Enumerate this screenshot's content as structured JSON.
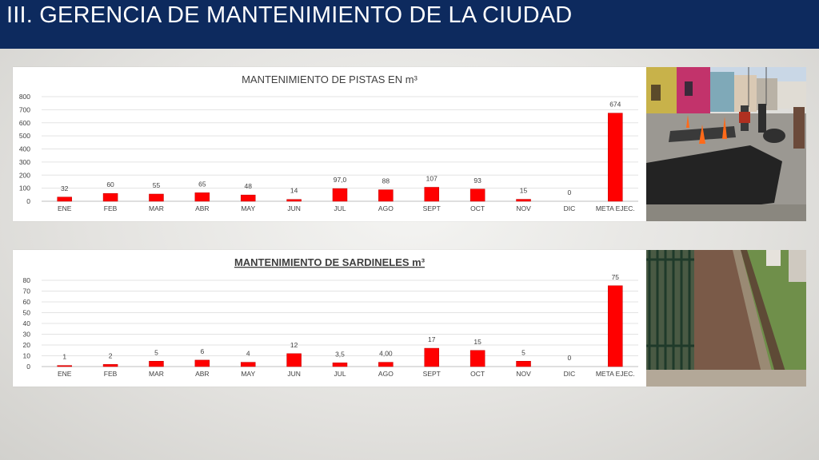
{
  "slide": {
    "title": "III. GERENCIA DE MANTENIMIENTO DE LA CIUDAD"
  },
  "colors": {
    "header_background": "#0d2a5e",
    "bar_fill": "#ff0000",
    "bar_stroke": "#c00000"
  },
  "photos": [
    {
      "icon": "street-paving-photo-icon"
    },
    {
      "icon": "curb-construction-photo-icon"
    }
  ],
  "chart_data": [
    {
      "type": "bar",
      "title": "MANTENIMIENTO DE PISTAS EN m³",
      "title_underlined": false,
      "categories": [
        "ENE",
        "FEB",
        "MAR",
        "ABR",
        "MAY",
        "JUN",
        "JUL",
        "AGO",
        "SEPT",
        "OCT",
        "NOV",
        "DIC",
        "META EJEC."
      ],
      "values": [
        32,
        60,
        55,
        65,
        48,
        14,
        97.0,
        88,
        107,
        93,
        15,
        0,
        674
      ],
      "data_labels": [
        "32",
        "60",
        "55",
        "65",
        "48",
        "14",
        "97,0",
        "88",
        "107",
        "93",
        "15",
        "0",
        "674"
      ],
      "yticks": [
        "0",
        "100",
        "200",
        "300",
        "400",
        "500",
        "600",
        "700",
        "800"
      ],
      "ylim": [
        0,
        800
      ],
      "grid": true,
      "legend": "none"
    },
    {
      "type": "bar",
      "title": "MANTENIMIENTO DE SARDINELES m³",
      "title_underlined": true,
      "categories": [
        "ENE",
        "FEB",
        "MAR",
        "ABR",
        "MAY",
        "JUN",
        "JUL",
        "AGO",
        "SEPT",
        "OCT",
        "NOV",
        "DIC",
        "META EJEC."
      ],
      "values": [
        1,
        2,
        5,
        6,
        4,
        12,
        3.5,
        4.0,
        17,
        15,
        5,
        0,
        75
      ],
      "data_labels": [
        "1",
        "2",
        "5",
        "6",
        "4",
        "12",
        "3,5",
        "4,00",
        "17",
        "15",
        "5",
        "0",
        "75"
      ],
      "yticks": [
        "0",
        "10",
        "20",
        "30",
        "40",
        "50",
        "60",
        "70",
        "80"
      ],
      "ylim": [
        0,
        80
      ],
      "grid": true,
      "legend": "none"
    }
  ]
}
